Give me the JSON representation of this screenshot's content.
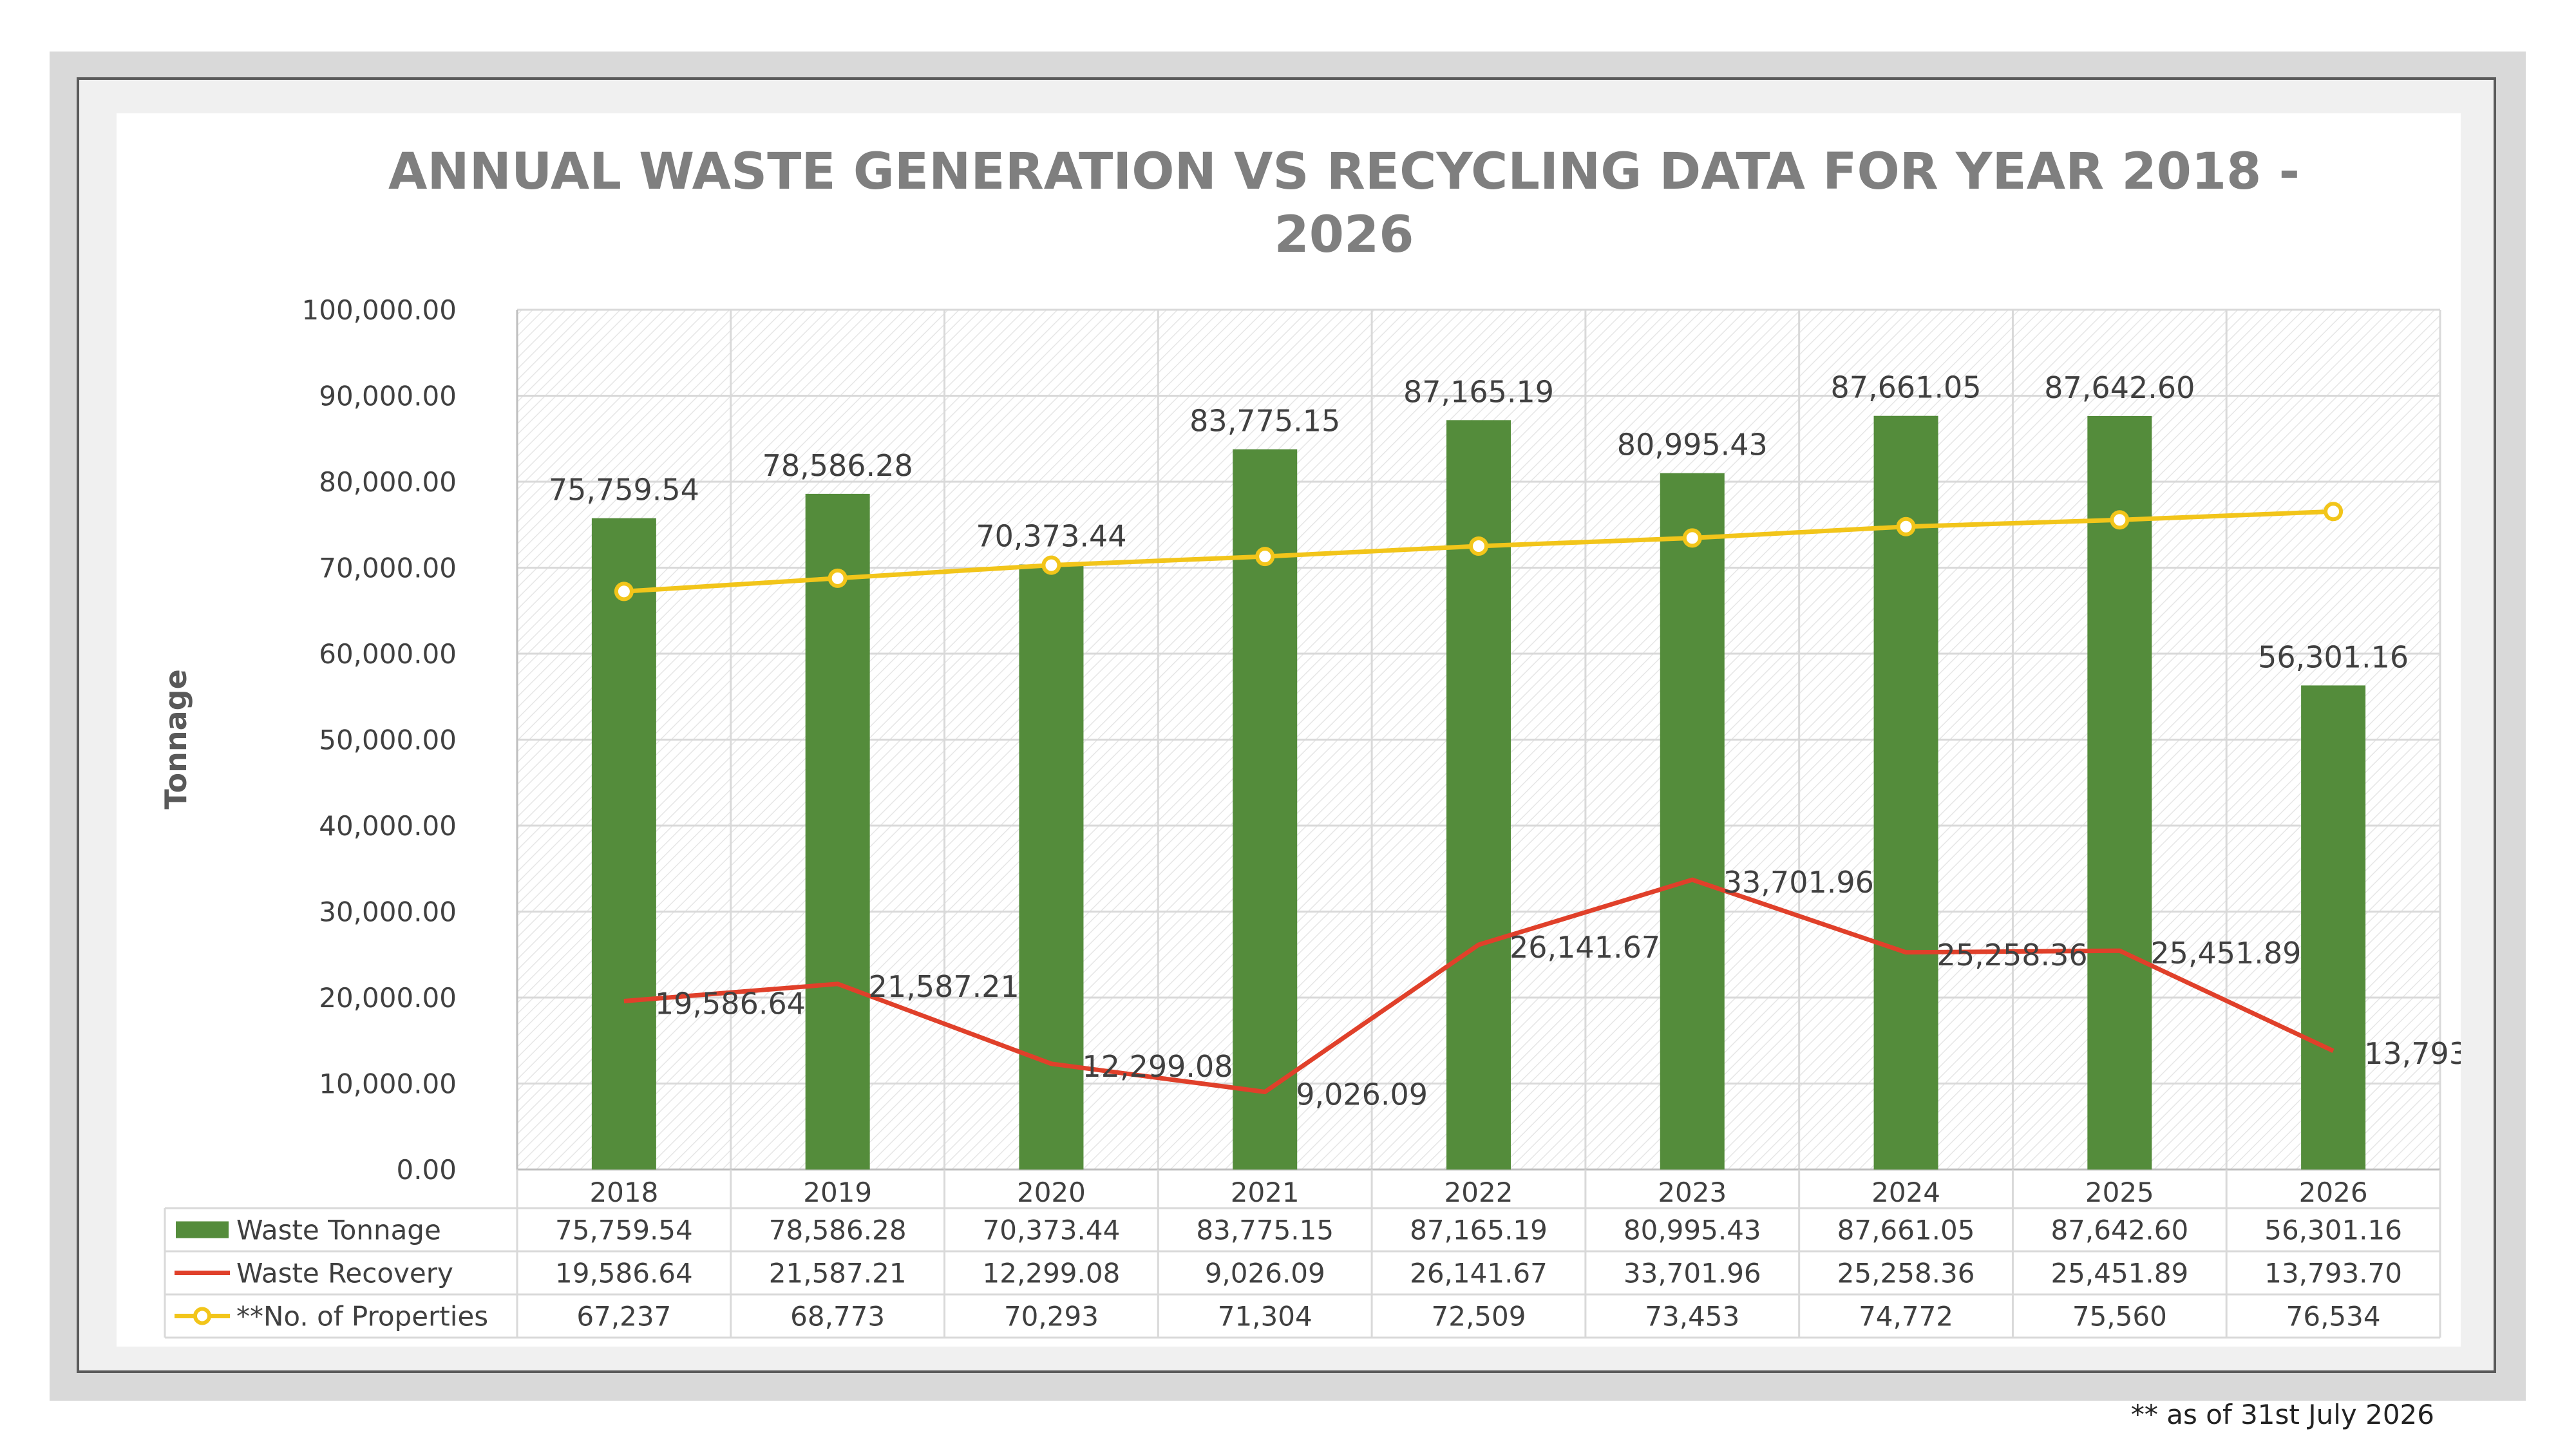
{
  "chart_data": {
    "type": "bar",
    "title_lines": [
      "ANNUAL WASTE GENERATION VS RECYCLING DATA FOR YEAR 2018 -",
      "2026"
    ],
    "ylabel": "Tonnage",
    "ylim": [
      0,
      100000
    ],
    "y_ticks": [
      "0.00",
      "10,000.00",
      "20,000.00",
      "30,000.00",
      "40,000.00",
      "50,000.00",
      "60,000.00",
      "70,000.00",
      "80,000.00",
      "90,000.00",
      "100,000.00"
    ],
    "categories": [
      "2018",
      "2019",
      "2020",
      "2021",
      "2022",
      "2023",
      "2024",
      "2025",
      "2026"
    ],
    "grid": true,
    "legend": "data-table-bottom",
    "series": [
      {
        "name": "Waste Tonnage",
        "kind": "bar",
        "color": "#548c3b",
        "values": [
          75759.54,
          78586.28,
          70373.44,
          83775.15,
          87165.19,
          80995.43,
          87661.05,
          87642.6,
          56301.16
        ],
        "labels": [
          "75,759.54",
          "78,586.28",
          "70,373.44",
          "83,775.15",
          "87,165.19",
          "80,995.43",
          "87,661.05",
          "87,642.60",
          "56,301.16"
        ]
      },
      {
        "name": "Waste Recovery",
        "kind": "line",
        "color": "#e0402a",
        "values": [
          19586.64,
          21587.21,
          12299.08,
          9026.09,
          26141.67,
          33701.96,
          25258.36,
          25451.89,
          13793.7
        ],
        "labels": [
          "19,586.64",
          "21,587.21",
          "12,299.08",
          "9,026.09",
          "26,141.67",
          "33,701.96",
          "25,258.36",
          "25,451.89",
          "13,793.70"
        ]
      },
      {
        "name": "**No. of Properties",
        "kind": "line-marker",
        "color": "#f2c51a",
        "values": [
          67237,
          68773,
          70293,
          71304,
          72509,
          73453,
          74772,
          75560,
          76534
        ],
        "labels": [
          "67,237",
          "68,773",
          "70,293",
          "71,304",
          "72,509",
          "73,453",
          "74,772",
          "75,560",
          "76,534"
        ]
      }
    ]
  },
  "footnote": "** as of 31st  July  2026"
}
